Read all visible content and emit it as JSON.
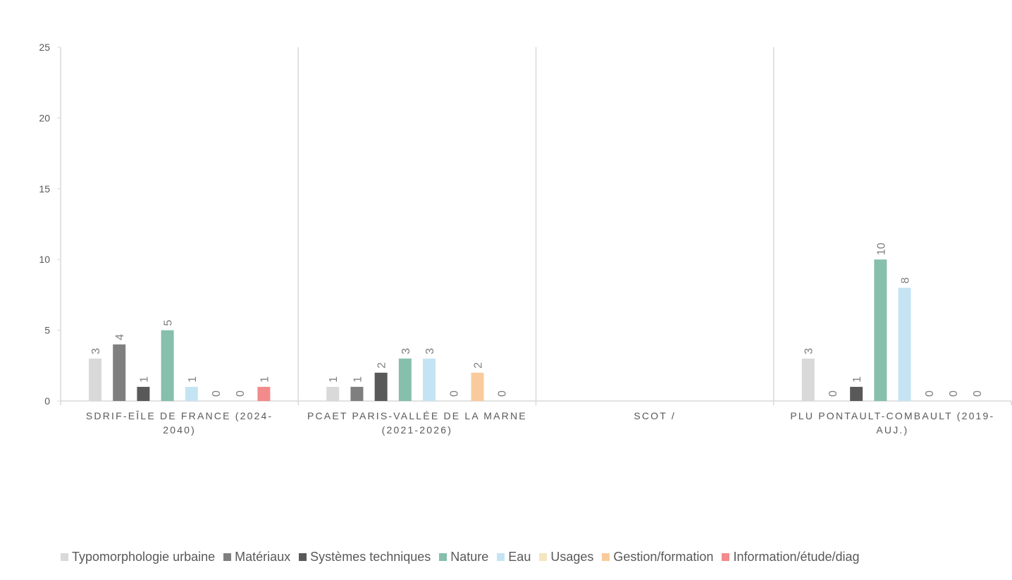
{
  "chart_data": {
    "type": "bar",
    "title": "",
    "xlabel": "",
    "ylabel": "",
    "ylim": [
      0,
      25
    ],
    "yticks": [
      0,
      5,
      10,
      15,
      20,
      25
    ],
    "grid": false,
    "legend_position": "bottom",
    "categories": [
      [
        "SDRIF-EÎLE DE FRANCE (2024-",
        "2040)"
      ],
      [
        "PCAET PARIS-VALLÉE DE LA MARNE",
        "(2021-2026)"
      ],
      [
        "SCOT /"
      ],
      [
        "PLU PONTAULT-COMBAULT (2019-",
        "AUJ.)"
      ]
    ],
    "series": [
      {
        "name": "Typomorphologie urbaine",
        "color": "#d9d9d9",
        "values": [
          3,
          1,
          null,
          3
        ]
      },
      {
        "name": "Matériaux",
        "color": "#7f7f7f",
        "values": [
          4,
          1,
          null,
          0
        ]
      },
      {
        "name": "Systèmes techniques",
        "color": "#595959",
        "values": [
          1,
          2,
          null,
          1
        ]
      },
      {
        "name": "Nature",
        "color": "#86bfac",
        "values": [
          5,
          3,
          null,
          10
        ]
      },
      {
        "name": "Eau",
        "color": "#c5e4f3",
        "values": [
          1,
          3,
          null,
          8
        ]
      },
      {
        "name": "Usages",
        "color": "#f5e6c0",
        "values": [
          0,
          0,
          null,
          0
        ]
      },
      {
        "name": "Gestion/formation",
        "color": "#f9cb9c",
        "values": [
          0,
          2,
          null,
          0
        ]
      },
      {
        "name": "Information/étude/diag",
        "color": "#f28b8b",
        "values": [
          1,
          0,
          null,
          0
        ]
      }
    ],
    "data_labels": [
      [
        "3",
        "4",
        "1",
        "5",
        "1",
        "0",
        "0",
        "1"
      ],
      [
        "1",
        "1",
        "2",
        "3",
        "3",
        "0",
        "2",
        "0"
      ],
      [],
      [
        "3",
        "0",
        "1",
        "10",
        "8",
        "0",
        "0",
        "0"
      ]
    ]
  }
}
